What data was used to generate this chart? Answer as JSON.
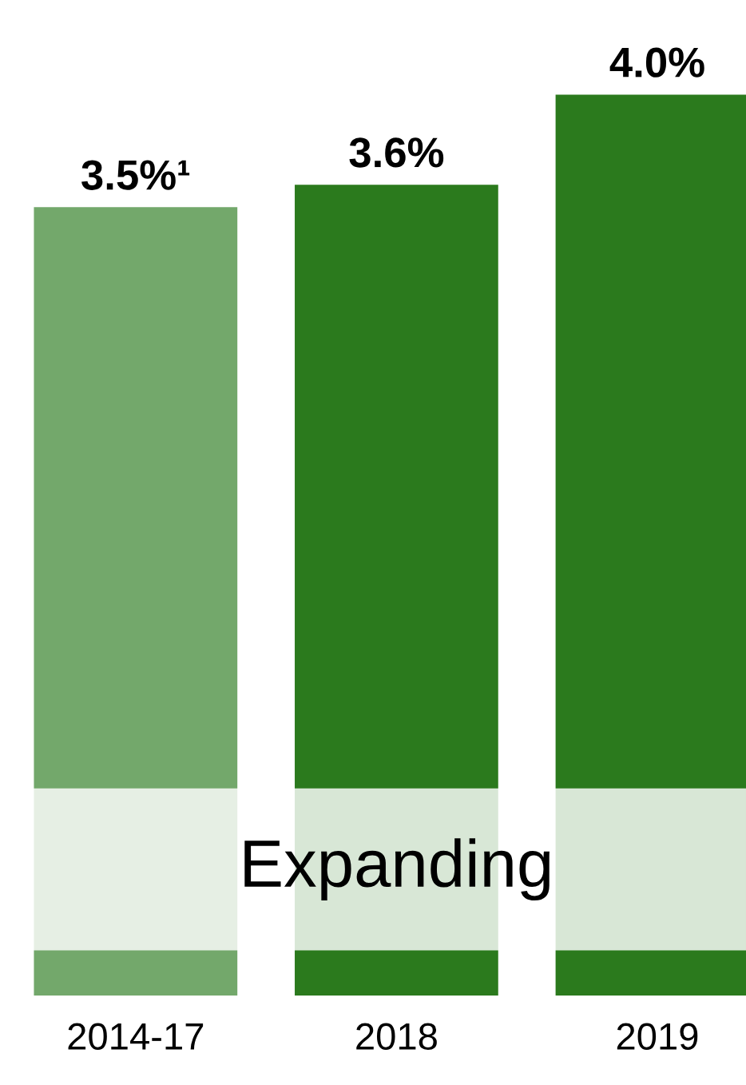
{
  "chart_data": {
    "type": "bar",
    "categories": [
      "2014-17",
      "2018",
      "2019"
    ],
    "values": [
      3.5,
      3.6,
      4.0
    ],
    "colors": [
      "#73a86b",
      "#2b7a1d",
      "#2b7a1d"
    ],
    "value_labels": [
      "3.5%¹",
      "3.6%",
      "4.0%"
    ],
    "bands": [
      {
        "axis": "y",
        "from": 0.2,
        "to": 0.92,
        "label": "Expanding",
        "color": "#ffffff"
      }
    ],
    "grid": false,
    "legend": false
  }
}
